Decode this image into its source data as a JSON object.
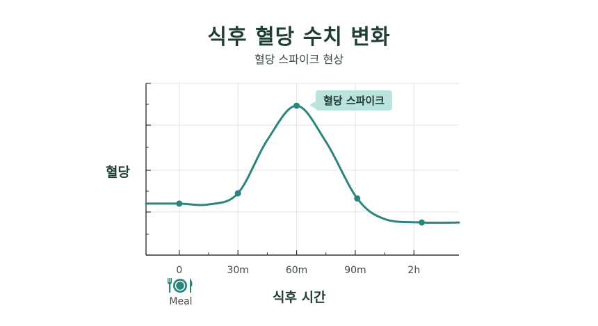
{
  "chart_data": {
    "type": "line",
    "title": "식후 혈당 수치 변화",
    "subtitle": "혈당 스파이크 현상",
    "xlabel": "식후 시간",
    "ylabel": "혈당",
    "x_ticks": [
      "0",
      "30m",
      "60m",
      "90m",
      "2h"
    ],
    "x_tick_minutes": [
      0,
      30,
      60,
      90,
      120
    ],
    "xlim": [
      -17,
      143
    ],
    "ylim": [
      0,
      100
    ],
    "curve": [
      {
        "x": -17,
        "y": 30
      },
      {
        "x": 0,
        "y": 30
      },
      {
        "x": 15,
        "y": 29.5
      },
      {
        "x": 30,
        "y": 36
      },
      {
        "x": 45,
        "y": 67
      },
      {
        "x": 60,
        "y": 87
      },
      {
        "x": 75,
        "y": 66
      },
      {
        "x": 91,
        "y": 33
      },
      {
        "x": 105,
        "y": 21
      },
      {
        "x": 124,
        "y": 19
      },
      {
        "x": 143,
        "y": 19
      }
    ],
    "points": [
      {
        "x": 0,
        "y": 30
      },
      {
        "x": 30,
        "y": 36
      },
      {
        "x": 60,
        "y": 87
      },
      {
        "x": 91,
        "y": 33
      },
      {
        "x": 124,
        "y": 19
      }
    ],
    "annotation": {
      "text": "혈당 스파이크",
      "x": 60,
      "y": 87
    },
    "meal_label": "Meal",
    "grid": true,
    "colors": {
      "line": "#2a857c",
      "callout": "#b9e3dd",
      "grid": "#e3e3e3",
      "axis": "#333333"
    }
  }
}
